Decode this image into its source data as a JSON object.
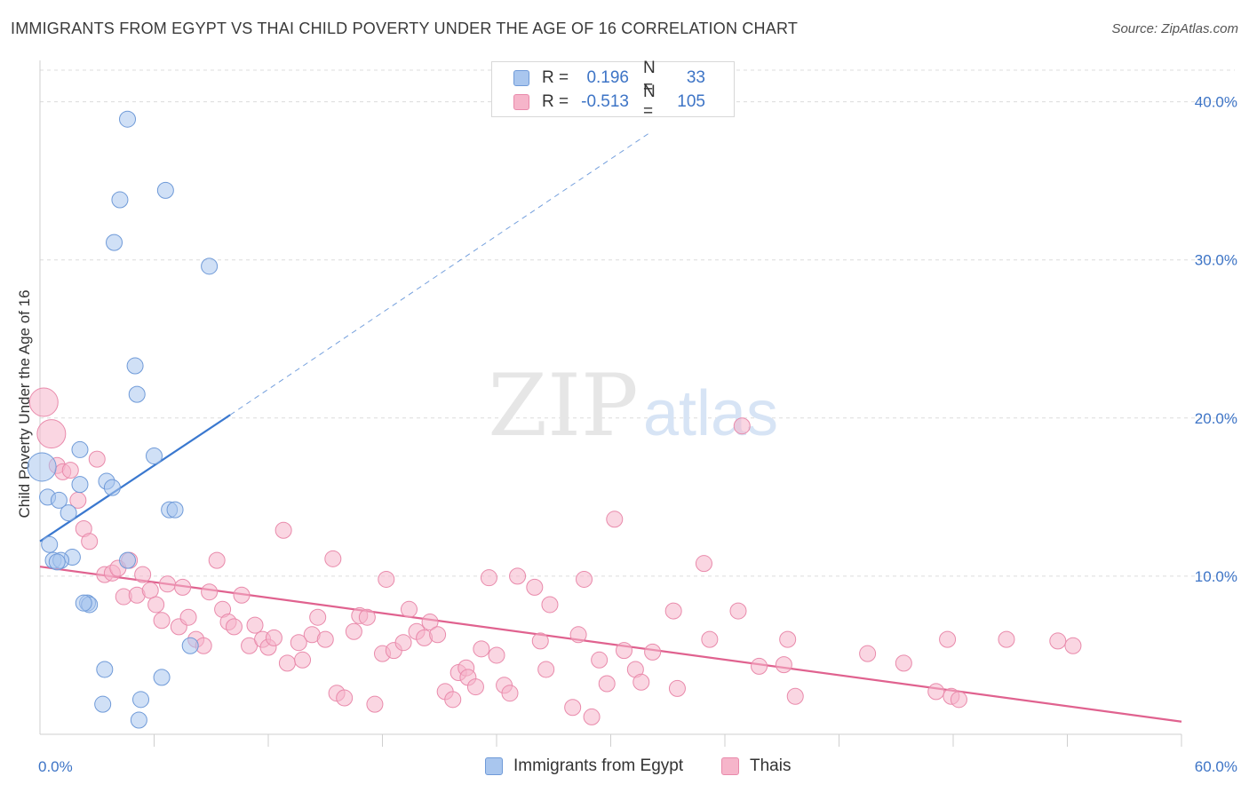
{
  "title": "IMMIGRANTS FROM EGYPT VS THAI CHILD POVERTY UNDER THE AGE OF 16 CORRELATION CHART",
  "source": "Source: ZipAtlas.com",
  "watermark": {
    "zip": "ZIP",
    "atlas": "atlas"
  },
  "colors": {
    "egypt_fill": "#a9c6ee",
    "egypt_stroke": "#6f9ad8",
    "egypt_line": "#3a78cf",
    "thai_fill": "#f6b5ca",
    "thai_stroke": "#e98aab",
    "thai_line": "#e0628f",
    "tick_label": "#3d74c6",
    "grid": "#dcdcdc"
  },
  "legend": {
    "rows": [
      {
        "r_label": "R =",
        "r_value": "0.196",
        "n_label": "N =",
        "n_value": "33"
      },
      {
        "r_label": "R =",
        "r_value": "-0.513",
        "n_label": "N =",
        "n_value": "105"
      }
    ]
  },
  "bottom_legend": {
    "egypt": "Immigrants from Egypt",
    "thai": "Thais"
  },
  "chart_data": {
    "type": "scatter",
    "title": "IMMIGRANTS FROM EGYPT VS THAI CHILD POVERTY UNDER THE AGE OF 16 CORRELATION CHART",
    "xlabel": "",
    "ylabel": "Child Poverty Under the Age of 16",
    "xlim": [
      0,
      60
    ],
    "ylim": [
      0,
      42
    ],
    "x_tick_labels": [
      "0.0%",
      "60.0%"
    ],
    "y_ticks": [
      10,
      20,
      30,
      40
    ],
    "y_tick_labels": [
      "10.0%",
      "20.0%",
      "30.0%",
      "40.0%"
    ],
    "grid": true,
    "legend_position": "top-center",
    "series": [
      {
        "name": "Immigrants from Egypt",
        "r": 0.196,
        "n": 33,
        "trend": {
          "x": [
            0,
            10
          ],
          "y": [
            12.2,
            20.2
          ],
          "extended_to": [
            32,
            38.0
          ]
        },
        "points": [
          [
            0.1,
            16.9,
            2
          ],
          [
            0.4,
            15.0,
            1
          ],
          [
            0.5,
            12.0,
            1
          ],
          [
            0.7,
            11.0,
            1
          ],
          [
            1.0,
            14.8,
            1
          ],
          [
            1.5,
            14.0,
            1
          ],
          [
            1.7,
            11.2,
            1
          ],
          [
            2.1,
            18.0,
            1
          ],
          [
            2.1,
            15.8,
            1
          ],
          [
            2.5,
            8.3,
            1
          ],
          [
            2.6,
            8.2,
            1
          ],
          [
            3.3,
            1.9,
            1
          ],
          [
            3.4,
            4.1,
            1
          ],
          [
            3.5,
            16.0,
            1
          ],
          [
            3.8,
            15.6,
            1
          ],
          [
            3.9,
            31.1,
            1
          ],
          [
            4.2,
            33.8,
            1
          ],
          [
            4.6,
            11.0,
            1
          ],
          [
            4.6,
            38.9,
            1
          ],
          [
            5.0,
            23.3,
            1
          ],
          [
            5.1,
            21.5,
            1
          ],
          [
            5.3,
            2.2,
            1
          ],
          [
            5.2,
            0.9,
            1
          ],
          [
            6.0,
            17.6,
            1
          ],
          [
            6.4,
            3.6,
            1
          ],
          [
            6.6,
            34.4,
            1
          ],
          [
            6.8,
            14.2,
            1
          ],
          [
            7.1,
            14.2,
            1
          ],
          [
            7.9,
            5.6,
            1
          ],
          [
            8.9,
            29.6,
            1
          ],
          [
            1.1,
            11.0,
            1
          ],
          [
            2.3,
            8.3,
            1
          ],
          [
            0.9,
            10.9,
            1
          ]
        ]
      },
      {
        "name": "Thais",
        "r": -0.513,
        "n": 105,
        "trend": {
          "x": [
            0,
            60
          ],
          "y": [
            10.6,
            0.8
          ]
        },
        "points": [
          [
            0.2,
            21.0,
            2
          ],
          [
            0.6,
            19.0,
            2
          ],
          [
            0.9,
            17.0,
            1
          ],
          [
            1.2,
            16.6,
            1
          ],
          [
            1.6,
            16.7,
            1
          ],
          [
            2.0,
            14.8,
            1
          ],
          [
            2.3,
            13.0,
            1
          ],
          [
            2.6,
            12.2,
            1
          ],
          [
            3.0,
            17.4,
            1
          ],
          [
            3.4,
            10.1,
            1
          ],
          [
            3.8,
            10.2,
            1
          ],
          [
            4.1,
            10.5,
            1
          ],
          [
            4.4,
            8.7,
            1
          ],
          [
            4.7,
            11.0,
            1
          ],
          [
            5.1,
            8.8,
            1
          ],
          [
            5.4,
            10.1,
            1
          ],
          [
            5.8,
            9.1,
            1
          ],
          [
            6.1,
            8.2,
            1
          ],
          [
            6.4,
            7.2,
            1
          ],
          [
            6.7,
            9.5,
            1
          ],
          [
            7.3,
            6.8,
            1
          ],
          [
            7.5,
            9.3,
            1
          ],
          [
            7.8,
            7.4,
            1
          ],
          [
            8.2,
            6.0,
            1
          ],
          [
            8.6,
            5.6,
            1
          ],
          [
            8.9,
            9.0,
            1
          ],
          [
            9.3,
            11.0,
            1
          ],
          [
            9.6,
            7.9,
            1
          ],
          [
            9.9,
            7.1,
            1
          ],
          [
            10.2,
            6.8,
            1
          ],
          [
            10.6,
            8.8,
            1
          ],
          [
            11.0,
            5.6,
            1
          ],
          [
            11.3,
            6.9,
            1
          ],
          [
            11.7,
            6.0,
            1
          ],
          [
            12.0,
            5.5,
            1
          ],
          [
            12.3,
            6.1,
            1
          ],
          [
            12.8,
            12.9,
            1
          ],
          [
            13.0,
            4.5,
            1
          ],
          [
            13.6,
            5.8,
            1
          ],
          [
            13.8,
            4.7,
            1
          ],
          [
            14.3,
            6.3,
            1
          ],
          [
            14.6,
            7.4,
            1
          ],
          [
            15.0,
            6.0,
            1
          ],
          [
            15.4,
            11.1,
            1
          ],
          [
            15.6,
            2.6,
            1
          ],
          [
            16.0,
            2.3,
            1
          ],
          [
            16.5,
            6.5,
            1
          ],
          [
            16.8,
            7.5,
            1
          ],
          [
            17.2,
            7.4,
            1
          ],
          [
            17.6,
            1.9,
            1
          ],
          [
            18.0,
            5.1,
            1
          ],
          [
            18.2,
            9.8,
            1
          ],
          [
            18.6,
            5.3,
            1
          ],
          [
            19.1,
            5.8,
            1
          ],
          [
            19.4,
            7.9,
            1
          ],
          [
            19.8,
            6.5,
            1
          ],
          [
            20.2,
            6.1,
            1
          ],
          [
            20.5,
            7.1,
            1
          ],
          [
            20.9,
            6.3,
            1
          ],
          [
            21.3,
            2.7,
            1
          ],
          [
            21.7,
            2.2,
            1
          ],
          [
            22.0,
            3.9,
            1
          ],
          [
            22.4,
            4.2,
            1
          ],
          [
            22.5,
            3.6,
            1
          ],
          [
            22.9,
            3.0,
            1
          ],
          [
            23.2,
            5.4,
            1
          ],
          [
            23.6,
            9.9,
            1
          ],
          [
            24.0,
            5.0,
            1
          ],
          [
            24.4,
            3.1,
            1
          ],
          [
            24.7,
            2.6,
            1
          ],
          [
            25.1,
            10.0,
            1
          ],
          [
            26.0,
            9.3,
            1
          ],
          [
            26.3,
            5.9,
            1
          ],
          [
            26.6,
            4.1,
            1
          ],
          [
            26.8,
            8.2,
            1
          ],
          [
            28.0,
            1.7,
            1
          ],
          [
            28.3,
            6.3,
            1
          ],
          [
            28.6,
            9.8,
            1
          ],
          [
            29.0,
            1.1,
            1
          ],
          [
            29.4,
            4.7,
            1
          ],
          [
            29.8,
            3.2,
            1
          ],
          [
            30.2,
            13.6,
            1
          ],
          [
            30.7,
            5.3,
            1
          ],
          [
            31.3,
            4.1,
            1
          ],
          [
            31.6,
            3.3,
            1
          ],
          [
            32.2,
            5.2,
            1
          ],
          [
            33.3,
            7.8,
            1
          ],
          [
            33.5,
            2.9,
            1
          ],
          [
            34.9,
            10.8,
            1
          ],
          [
            35.2,
            6.0,
            1
          ],
          [
            36.7,
            7.8,
            1
          ],
          [
            36.9,
            19.5,
            1
          ],
          [
            37.8,
            4.3,
            1
          ],
          [
            39.1,
            4.4,
            1
          ],
          [
            39.3,
            6.0,
            1
          ],
          [
            39.7,
            2.4,
            1
          ],
          [
            43.5,
            5.1,
            1
          ],
          [
            45.4,
            4.5,
            1
          ],
          [
            47.1,
            2.7,
            1
          ],
          [
            47.7,
            6.0,
            1
          ],
          [
            47.9,
            2.4,
            1
          ],
          [
            48.3,
            2.2,
            1
          ],
          [
            50.8,
            6.0,
            1
          ],
          [
            54.3,
            5.6,
            1
          ],
          [
            53.5,
            5.9,
            1
          ]
        ]
      }
    ]
  }
}
